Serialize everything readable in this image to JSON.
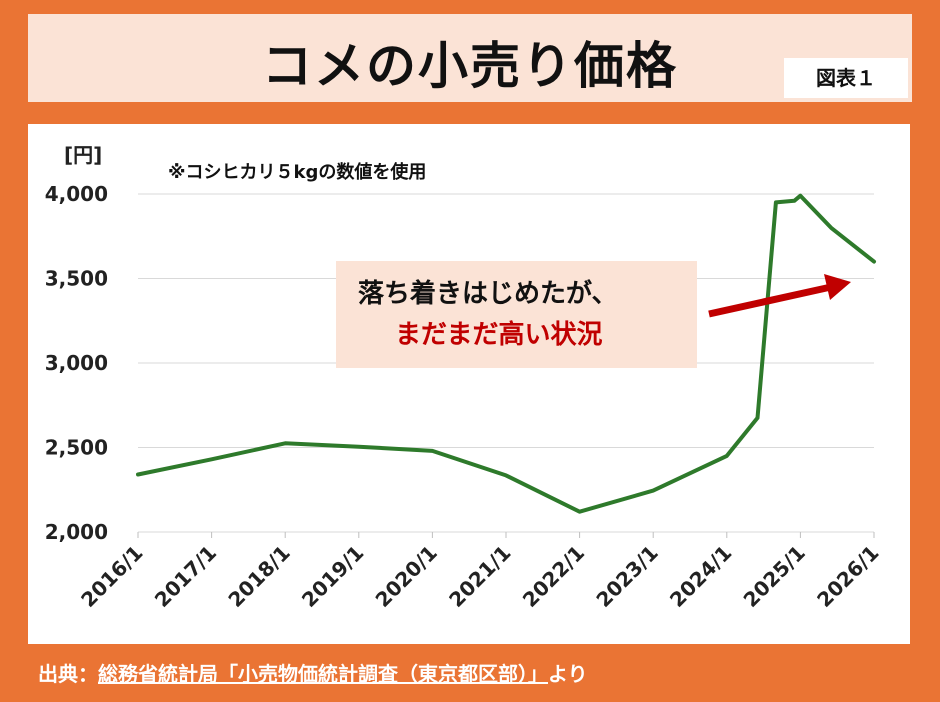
{
  "title": "コメの小売り価格",
  "figure_label": "図表１",
  "source": {
    "prefix": "出典：",
    "link": "総務省統計局「小売物価統計調査（東京都区部）」",
    "suffix": "より"
  },
  "colors": {
    "background": "#ea7434",
    "line": "#2e7a2b",
    "arrow": "#c00000",
    "callout_bg": "#fbe3d6",
    "callout_highlight": "#c00000"
  },
  "chart_data": {
    "type": "line",
    "unit_label": "[円]",
    "note": "※コシヒカリ５kgの数値を使用",
    "ylim": [
      2000,
      4000
    ],
    "y_ticks": [
      {
        "value": 2000,
        "label": "2,000"
      },
      {
        "value": 2500,
        "label": "2,500"
      },
      {
        "value": 3000,
        "label": "3,000"
      },
      {
        "value": 3500,
        "label": "3,500"
      },
      {
        "value": 4000,
        "label": "4,000"
      }
    ],
    "x_ticks": [
      "2016/1",
      "2017/1",
      "2018/1",
      "2019/1",
      "2020/1",
      "2021/1",
      "2022/1",
      "2023/1",
      "2024/1",
      "2025/1",
      "2026/1"
    ],
    "grid": "horizontal",
    "series": [
      {
        "x": [
          "2016/1",
          "2017/1",
          "2018/1",
          "2019/1",
          "2020/1",
          "2021/1",
          "2022/1",
          "2023/1",
          "2024/1",
          "2024/6",
          "2024/9",
          "2024/12",
          "2025/1",
          "2025/6",
          "2026/1"
        ],
        "values": [
          2340,
          2430,
          2525,
          2505,
          2480,
          2335,
          2120,
          2245,
          2450,
          2675,
          3950,
          3960,
          3990,
          3800,
          3600
        ]
      }
    ],
    "annotation": {
      "line1": "落ち着きはじめたが、",
      "line2": "まだまだ高い状況"
    }
  }
}
